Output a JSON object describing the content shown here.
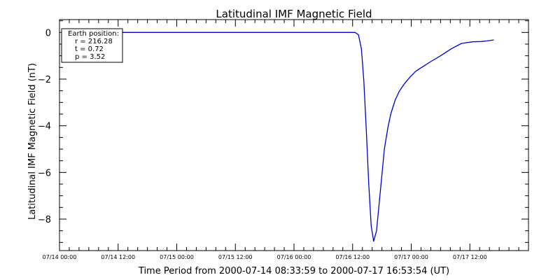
{
  "chart_data": {
    "type": "line",
    "title": "Latitudinal IMF Magnetic Field",
    "xlabel": "Time Period from 2000-07-14 08:33:59 to 2000-07-17 16:53:54 (UT)",
    "ylabel": "Latitudinal IMF Magnetic Field (nT)",
    "x_ticks": [
      "07/14 00:00",
      "07/14 12:00",
      "07/15 00:00",
      "07/15 12:00",
      "07/16 00:00",
      "07/16 12:00",
      "07/17 00:00",
      "07/17 12:00"
    ],
    "x_tick_hours": [
      0,
      12,
      24,
      36,
      48,
      60,
      72,
      84
    ],
    "xlim_hours": [
      0,
      96
    ],
    "y_ticks": [
      0,
      -2,
      -4,
      -6,
      -8
    ],
    "y_tick_labels": [
      "0",
      "−2",
      "−4",
      "−6",
      "−8"
    ],
    "ylim": [
      -9.35,
      0.55
    ],
    "grid": false,
    "line_color": "#0000cc",
    "series": [
      {
        "name": "",
        "x_hours": [
          8.57,
          12,
          24,
          36,
          48,
          60,
          60.5,
          61.2,
          61.8,
          62.3,
          62.8,
          63.3,
          63.8,
          64.3,
          64.9,
          65.5,
          66.0,
          66.5,
          67.2,
          67.8,
          68.7,
          69.6,
          70.6,
          71.8,
          73.0,
          74.5,
          76.0,
          78.0,
          80.2,
          82.3,
          84.6,
          86.4,
          88.0,
          88.9
        ],
        "values": [
          0,
          0,
          0,
          0,
          0,
          0,
          0,
          -0.1,
          -0.7,
          -2.1,
          -4.2,
          -6.5,
          -8.3,
          -8.95,
          -8.5,
          -7.2,
          -6.1,
          -5.0,
          -4.1,
          -3.5,
          -2.9,
          -2.5,
          -2.2,
          -1.9,
          -1.65,
          -1.45,
          -1.25,
          -1.0,
          -0.7,
          -0.47,
          -0.4,
          -0.39,
          -0.35,
          -0.32
        ]
      }
    ]
  },
  "legend_box": {
    "heading": "Earth position:",
    "r": "r = 216.28",
    "t": "t = 0.72",
    "p": "p = 3.52"
  }
}
